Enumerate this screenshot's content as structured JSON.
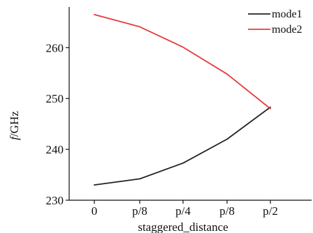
{
  "chart_data": {
    "type": "line",
    "categories": [
      "0",
      "p/8",
      "p/4",
      "p/8",
      "p/2"
    ],
    "xlabel": "staggered_distance",
    "ylabel": "f/GHz",
    "ylabel_italic_part": "f",
    "ylabel_rest": "/GHz",
    "ylim": [
      230,
      268
    ],
    "yticks": [
      230,
      240,
      250,
      260
    ],
    "legend_position": "top-right",
    "grid": false,
    "series": [
      {
        "name": "mode1",
        "color": "#222222",
        "values": [
          233.0,
          234.2,
          237.3,
          242.0,
          248.3
        ]
      },
      {
        "name": "mode2",
        "color": "#e8393a",
        "values": [
          266.5,
          264.1,
          260.1,
          254.8,
          248.0
        ]
      }
    ]
  }
}
